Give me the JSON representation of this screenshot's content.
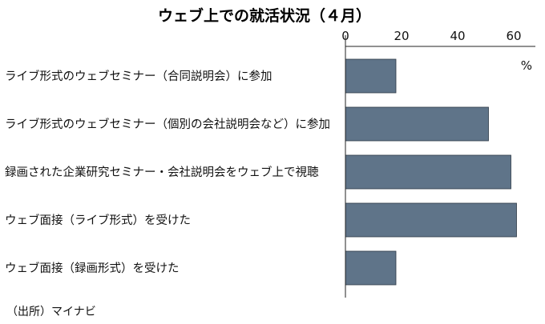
{
  "chart_data": {
    "type": "bar",
    "orientation": "horizontal",
    "title": "ウェブ上での就活状況（４月）",
    "unit": "%",
    "xlim": [
      0,
      70
    ],
    "ticks": [
      0,
      20,
      40,
      60
    ],
    "grid": false,
    "categories": [
      "ライブ形式のウェブセミナー（合同説明会）に参加",
      "ライブ形式のウェブセミナー（個別の会社説明会など）に参加",
      "録画された企業研究セミナー・会社説明会をウェブ上で視聴",
      "ウェブ面接（ライブ形式）を受けた",
      "ウェブ面接（録画形式）を受けた"
    ],
    "values": [
      18,
      51,
      59,
      61,
      18
    ],
    "source": "（出所）マイナビ",
    "bar_color": "#5f7489"
  }
}
